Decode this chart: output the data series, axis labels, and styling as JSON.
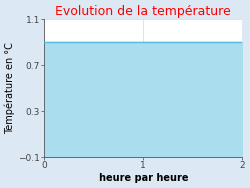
{
  "title": "Evolution de la température",
  "title_color": "#ff0000",
  "xlabel": "heure par heure",
  "ylabel": "Température en °C",
  "xlim": [
    0,
    2
  ],
  "ylim": [
    -0.1,
    1.1
  ],
  "xticks": [
    0,
    1,
    2
  ],
  "yticks": [
    -0.1,
    0.3,
    0.7,
    1.1
  ],
  "line_y": 0.9,
  "line_color": "#55bbdd",
  "fill_color": "#aaddee",
  "background_color": "#dce9f5",
  "plot_bg_color": "#ffffff",
  "line_x_start": 0,
  "line_x_end": 2,
  "title_fontsize": 9,
  "axis_label_fontsize": 7,
  "tick_fontsize": 6.5,
  "grid_color": "#cccccc"
}
